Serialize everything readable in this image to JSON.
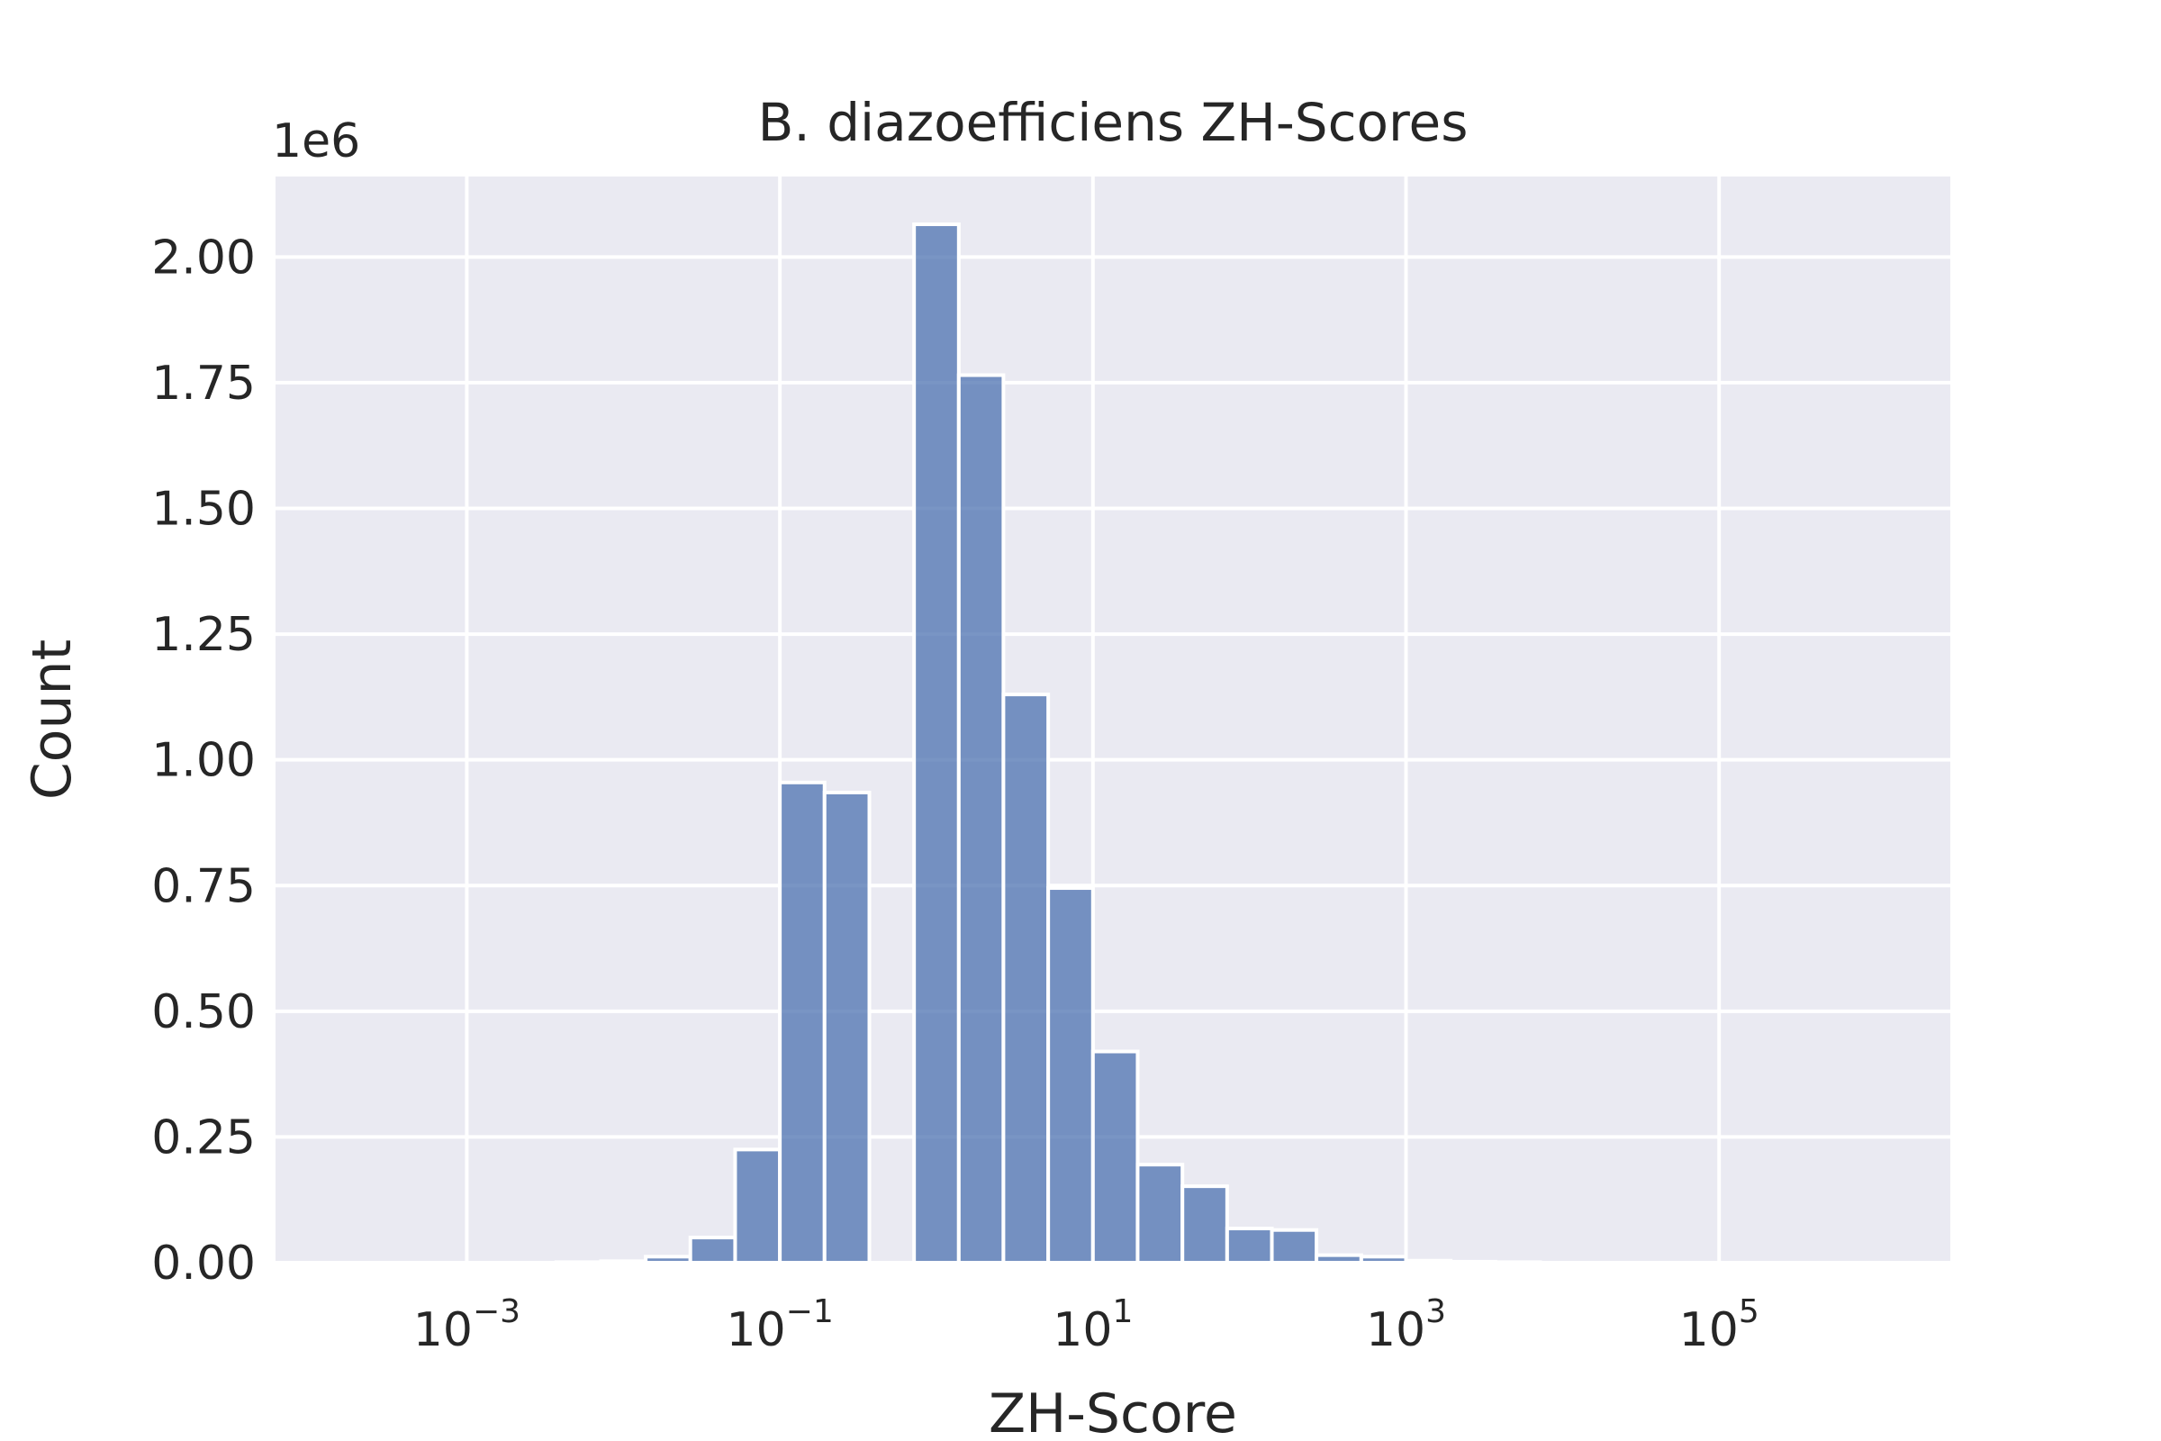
{
  "chart_data": {
    "type": "bar",
    "title": "B. diazoefficiens ZH-Scores",
    "xlabel": "ZH-Score",
    "ylabel": "Count",
    "x_scale": "log",
    "xlim": [
      6e-05,
      3000000
    ],
    "ylim": [
      0,
      2160000
    ],
    "y_offset_label": "1e6",
    "y_ticks": [
      {
        "value": 0,
        "label": "0.00"
      },
      {
        "value": 250000,
        "label": "0.25"
      },
      {
        "value": 500000,
        "label": "0.50"
      },
      {
        "value": 750000,
        "label": "0.75"
      },
      {
        "value": 1000000,
        "label": "1.00"
      },
      {
        "value": 1250000,
        "label": "1.25"
      },
      {
        "value": 1500000,
        "label": "1.50"
      },
      {
        "value": 1750000,
        "label": "1.75"
      },
      {
        "value": 2000000,
        "label": "2.00"
      }
    ],
    "x_ticks": [
      {
        "value": 0.001,
        "base": "10",
        "exp": "−3"
      },
      {
        "value": 0.1,
        "base": "10",
        "exp": "−1"
      },
      {
        "value": 10,
        "base": "10",
        "exp": "1"
      },
      {
        "value": 1000,
        "base": "10",
        "exp": "3"
      },
      {
        "value": 100000,
        "base": "10",
        "exp": "5"
      }
    ],
    "bins": [
      {
        "x0": 0.001,
        "x1": 0.00193,
        "count": 0
      },
      {
        "x0": 0.00193,
        "x1": 0.00373,
        "count": 0
      },
      {
        "x0": 0.00373,
        "x1": 0.0072,
        "count": 1000
      },
      {
        "x0": 0.0072,
        "x1": 0.0139,
        "count": 3000
      },
      {
        "x0": 0.0139,
        "x1": 0.0268,
        "count": 12000
      },
      {
        "x0": 0.0268,
        "x1": 0.0518,
        "count": 50000
      },
      {
        "x0": 0.0518,
        "x1": 0.1,
        "count": 225000
      },
      {
        "x0": 0.1,
        "x1": 0.193,
        "count": 955000
      },
      {
        "x0": 0.193,
        "x1": 0.373,
        "count": 935000
      },
      {
        "x0": 0.373,
        "x1": 0.72,
        "count": 0
      },
      {
        "x0": 0.72,
        "x1": 1.39,
        "count": 2065000
      },
      {
        "x0": 1.39,
        "x1": 2.68,
        "count": 1765000
      },
      {
        "x0": 2.68,
        "x1": 5.18,
        "count": 1130000
      },
      {
        "x0": 5.18,
        "x1": 10,
        "count": 745000
      },
      {
        "x0": 10,
        "x1": 19.3,
        "count": 420000
      },
      {
        "x0": 19.3,
        "x1": 37.3,
        "count": 195000
      },
      {
        "x0": 37.3,
        "x1": 72,
        "count": 152000
      },
      {
        "x0": 72,
        "x1": 139,
        "count": 68000
      },
      {
        "x0": 139,
        "x1": 268,
        "count": 65000
      },
      {
        "x0": 268,
        "x1": 518,
        "count": 15000
      },
      {
        "x0": 518,
        "x1": 1000,
        "count": 12000
      },
      {
        "x0": 1000,
        "x1": 1930,
        "count": 4000
      },
      {
        "x0": 1930,
        "x1": 3730,
        "count": 2000
      },
      {
        "x0": 3730,
        "x1": 7200,
        "count": 1000
      },
      {
        "x0": 7200,
        "x1": 13900,
        "count": 0
      },
      {
        "x0": 13900,
        "x1": 26800,
        "count": 0
      },
      {
        "x0": 26800,
        "x1": 51800,
        "count": 0
      },
      {
        "x0": 51800,
        "x1": 100000,
        "count": 0
      },
      {
        "x0": 100000,
        "x1": 193000,
        "count": 0
      },
      {
        "x0": 193000,
        "x1": 373000,
        "count": 0
      },
      {
        "x0": 373000,
        "x1": 720000,
        "count": 0
      },
      {
        "x0": 720000,
        "x1": 1000000,
        "count": 0
      }
    ],
    "grid": true,
    "colors": {
      "plot_background": "#eaeaf2",
      "bar": "#4c72b0",
      "grid": "#ffffff",
      "text": "#262626"
    }
  }
}
